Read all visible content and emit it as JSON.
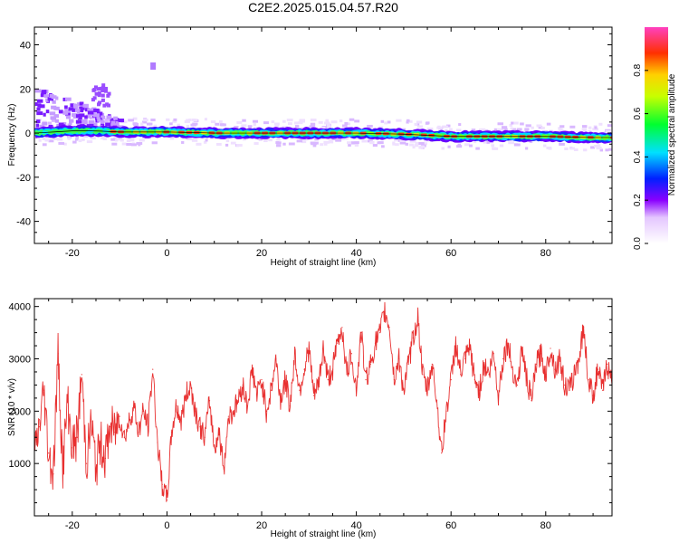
{
  "figure_title": "C2E2.2025.015.04.57.R20",
  "chart_data": [
    {
      "type": "heatmap",
      "xlabel": "Height of straight line (km)",
      "ylabel": "Frequency (Hz)",
      "xlim": [
        -28,
        94
      ],
      "ylim": [
        -50,
        48
      ],
      "x_ticks": [
        -20,
        0,
        20,
        40,
        60,
        80
      ],
      "y_ticks": [
        -40,
        -20,
        0,
        20,
        40
      ],
      "colorbar": {
        "label": "Normalized spectral amplitude",
        "range": [
          0.0,
          1.0
        ],
        "ticks": [
          0.0,
          0.2,
          0.4,
          0.6,
          0.8
        ]
      },
      "ridge": {
        "x": [
          -28,
          -20,
          -15,
          -10,
          0,
          10,
          20,
          30,
          40,
          50,
          55,
          60,
          70,
          80,
          90,
          94
        ],
        "frequency": [
          0,
          1,
          1,
          0.5,
          0.5,
          0,
          0,
          0,
          0,
          -0.5,
          -1,
          -1.5,
          -1.5,
          -1.5,
          -2,
          -2
        ]
      }
    },
    {
      "type": "line",
      "xlabel": "Height of straight line (km)",
      "ylabel": "SNR (10 * v/v)",
      "xlim": [
        -28,
        94
      ],
      "ylim": [
        0,
        4150
      ],
      "x_ticks": [
        -20,
        0,
        20,
        40,
        60,
        80
      ],
      "y_ticks": [
        1000,
        2000,
        3000,
        4000
      ],
      "series": [
        {
          "color": "#e83030",
          "x": [
            -28,
            -27,
            -26,
            -25,
            -24,
            -23,
            -22,
            -21,
            -20,
            -19,
            -18,
            -17,
            -16,
            -15,
            -14,
            -13,
            -12,
            -11,
            -10,
            -9,
            -8,
            -7,
            -6,
            -5,
            -4,
            -3,
            -2,
            -1,
            0,
            1,
            2,
            3,
            4,
            5,
            6,
            7,
            8,
            9,
            10,
            11,
            12,
            13,
            14,
            15,
            16,
            17,
            18,
            19,
            20,
            21,
            22,
            23,
            24,
            25,
            26,
            27,
            28,
            29,
            30,
            31,
            32,
            33,
            34,
            35,
            36,
            37,
            38,
            39,
            40,
            41,
            42,
            43,
            44,
            45,
            46,
            47,
            48,
            49,
            50,
            51,
            52,
            53,
            54,
            55,
            56,
            57,
            58,
            59,
            60,
            61,
            62,
            63,
            64,
            65,
            66,
            67,
            68,
            69,
            70,
            71,
            72,
            73,
            74,
            75,
            76,
            77,
            78,
            79,
            80,
            81,
            82,
            83,
            84,
            85,
            86,
            87,
            88,
            89,
            90,
            91,
            92,
            93,
            94
          ],
          "values": [
            1100,
            1700,
            2400,
            1200,
            800,
            3100,
            900,
            2200,
            1300,
            1500,
            2700,
            1000,
            1800,
            900,
            1400,
            1100,
            1700,
            1600,
            1900,
            1500,
            1800,
            2100,
            1600,
            2000,
            1700,
            2800,
            1400,
            600,
            300,
            1600,
            2100,
            1800,
            2300,
            2500,
            2000,
            1700,
            1500,
            2200,
            1300,
            1600,
            900,
            1900,
            2000,
            2200,
            2500,
            2100,
            2800,
            2300,
            2600,
            2000,
            2400,
            3000,
            2200,
            2600,
            2100,
            3100,
            2400,
            2800,
            3200,
            2300,
            2500,
            3200,
            2600,
            2800,
            3300,
            3600,
            2700,
            3100,
            2400,
            3500,
            2600,
            2900,
            3300,
            3500,
            3900,
            3600,
            2600,
            3000,
            2400,
            2900,
            3400,
            3800,
            2700,
            2400,
            2900,
            2200,
            1200,
            2000,
            2600,
            3300,
            2700,
            3000,
            3200,
            2600,
            2400,
            2900,
            2700,
            3100,
            2300,
            3000,
            3300,
            2800,
            2500,
            3200,
            2600,
            2200,
            2900,
            3100,
            2700,
            3200,
            2800,
            3000,
            2500,
            2400,
            2700,
            3000,
            3600,
            2600,
            2300,
            2800,
            2400,
            2900,
            2500
          ]
        }
      ]
    }
  ]
}
